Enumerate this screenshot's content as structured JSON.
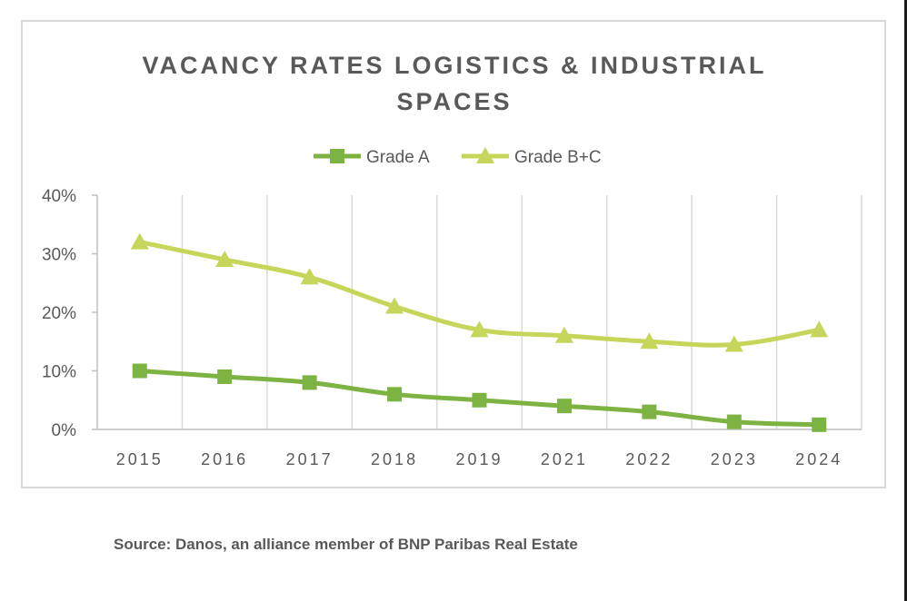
{
  "chart_data": {
    "type": "line",
    "title_lines": [
      "VACANCY RATES LOGISTICS & INDUSTRIAL",
      "SPACES"
    ],
    "categories": [
      "2015",
      "2016",
      "2017",
      "2018",
      "2019",
      "2021",
      "2022",
      "2023",
      "2024"
    ],
    "series": [
      {
        "name": "Grade A",
        "marker": "square",
        "color": "#7cb342",
        "values": [
          10,
          9,
          8,
          6,
          5,
          4,
          3,
          1.3,
          0.8
        ]
      },
      {
        "name": "Grade B+C",
        "marker": "triangle",
        "color": "#c5d65a",
        "values": [
          32,
          29,
          26,
          21,
          17,
          16,
          15,
          14.5,
          17
        ]
      }
    ],
    "y_ticks": [
      "0%",
      "10%",
      "20%",
      "30%",
      "40%"
    ],
    "ylim": [
      0,
      40
    ],
    "xlabel": "",
    "ylabel": "",
    "grid": "vertical",
    "legend": "top-center"
  },
  "source": "Source: Danos, an alliance member of BNP Paribas Real Estate"
}
